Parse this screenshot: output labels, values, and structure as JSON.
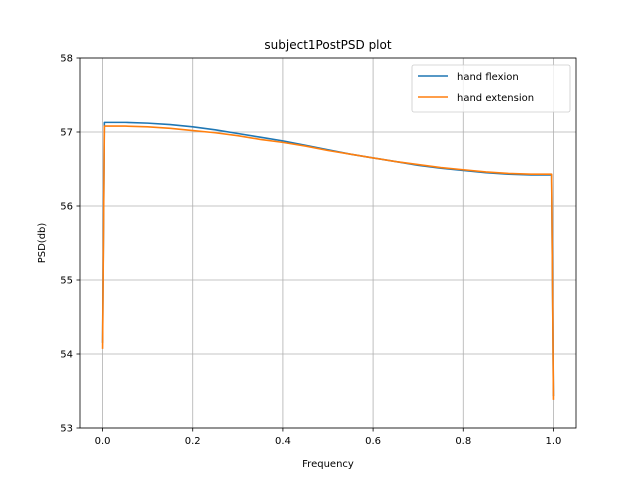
{
  "chart_data": {
    "type": "line",
    "title": "subject1PostPSD plot",
    "xlabel": "Frequency",
    "ylabel": "PSD(db)",
    "xlim": [
      -0.05,
      1.05
    ],
    "ylim": [
      53,
      58
    ],
    "xticks": [
      0.0,
      0.2,
      0.4,
      0.6,
      0.8,
      1.0
    ],
    "xtick_labels": [
      "0.0",
      "0.2",
      "0.4",
      "0.6",
      "0.8",
      "1.0"
    ],
    "yticks": [
      53,
      54,
      55,
      56,
      57,
      58
    ],
    "ytick_labels": [
      "53",
      "54",
      "55",
      "56",
      "57",
      "58"
    ],
    "grid": true,
    "legend_position": "top-right",
    "series": [
      {
        "name": "hand flexion",
        "color": "#1f77b4",
        "x": [
          0.0,
          0.004,
          0.05,
          0.1,
          0.15,
          0.2,
          0.25,
          0.3,
          0.35,
          0.4,
          0.45,
          0.5,
          0.55,
          0.6,
          0.65,
          0.7,
          0.75,
          0.8,
          0.85,
          0.9,
          0.95,
          0.996,
          1.0
        ],
        "y": [
          54.15,
          57.13,
          57.13,
          57.12,
          57.1,
          57.07,
          57.03,
          56.98,
          56.93,
          56.88,
          56.82,
          56.76,
          56.7,
          56.65,
          56.6,
          56.55,
          56.51,
          56.48,
          56.45,
          56.43,
          56.42,
          56.42,
          53.43
        ]
      },
      {
        "name": "hand extension",
        "color": "#ff7f0e",
        "x": [
          0.0,
          0.004,
          0.05,
          0.1,
          0.15,
          0.2,
          0.25,
          0.3,
          0.35,
          0.4,
          0.45,
          0.5,
          0.55,
          0.6,
          0.65,
          0.7,
          0.75,
          0.8,
          0.85,
          0.9,
          0.95,
          0.996,
          1.0
        ],
        "y": [
          54.07,
          57.08,
          57.08,
          57.07,
          57.05,
          57.02,
          56.99,
          56.95,
          56.9,
          56.86,
          56.81,
          56.75,
          56.7,
          56.65,
          56.6,
          56.56,
          56.52,
          56.49,
          56.46,
          56.44,
          56.43,
          56.43,
          53.38
        ]
      }
    ]
  }
}
